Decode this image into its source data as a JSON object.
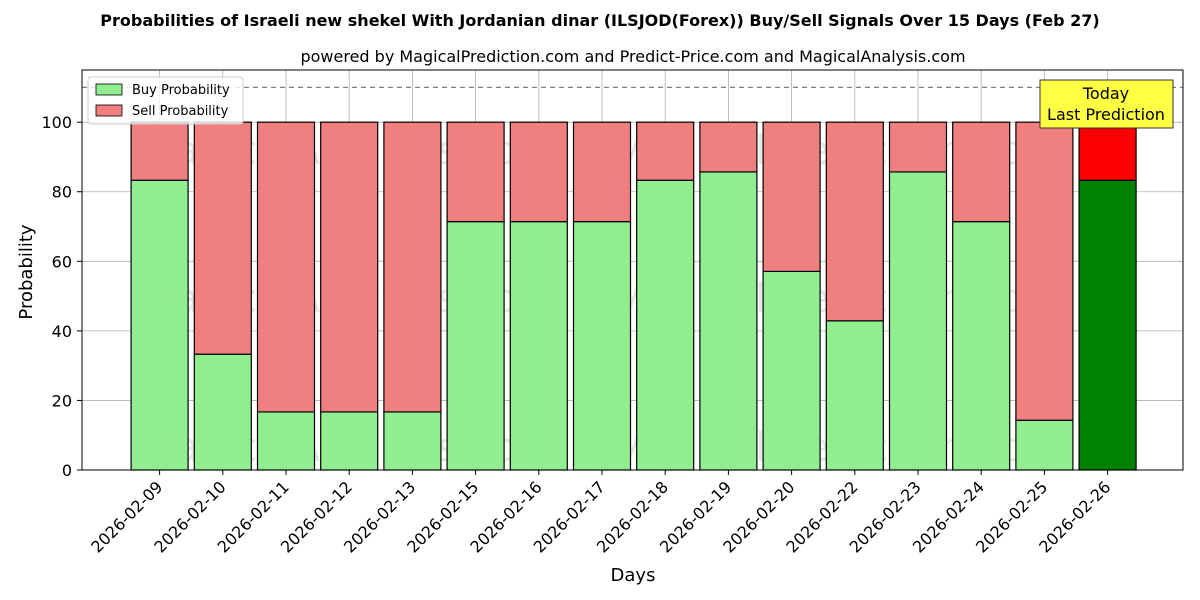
{
  "chart_data": {
    "type": "bar",
    "stacked": true,
    "title": "Probabilities of Israeli new shekel With Jordanian dinar (ILSJOD(Forex)) Buy/Sell Signals Over 15 Days (Feb 27)",
    "subtitle": "powered by MagicalPrediction.com and Predict-Price.com and MagicalAnalysis.com",
    "xlabel": "Days",
    "ylabel": "Probability",
    "ylim": [
      0,
      115
    ],
    "yticks": [
      "0",
      "20",
      "40",
      "60",
      "80",
      "100"
    ],
    "categories": [
      "2026-02-09",
      "2026-02-10",
      "2026-02-11",
      "2026-02-12",
      "2026-02-13",
      "2026-02-15",
      "2026-02-16",
      "2026-02-17",
      "2026-02-18",
      "2026-02-19",
      "2026-02-20",
      "2026-02-22",
      "2026-02-23",
      "2026-02-24",
      "2026-02-25",
      "2026-02-26"
    ],
    "series": [
      {
        "name": "Buy Probability",
        "color": "#90ee90",
        "values": [
          83.3,
          33.3,
          16.7,
          16.7,
          16.7,
          71.4,
          71.4,
          71.4,
          83.3,
          85.7,
          57.1,
          42.9,
          85.7,
          71.4,
          14.3,
          83.3
        ]
      },
      {
        "name": "Sell Probability",
        "color": "#f08080",
        "values": [
          16.7,
          66.7,
          83.3,
          83.3,
          83.3,
          28.6,
          28.6,
          28.6,
          16.7,
          14.3,
          42.9,
          57.1,
          14.3,
          28.6,
          85.7,
          16.7
        ]
      }
    ],
    "highlight": {
      "index": 15,
      "buy_color": "#008000",
      "sell_color": "#ff0000"
    },
    "reference_line": {
      "y": 110,
      "style": "dashed",
      "color": "#808080"
    },
    "annotation": {
      "lines": [
        "Today",
        "Last Prediction"
      ],
      "background": "#ffff44"
    },
    "watermarks": [
      "MagicalAnalysis.com",
      "MagicalPrediction.com"
    ],
    "grid": true,
    "legend": "top-left"
  }
}
